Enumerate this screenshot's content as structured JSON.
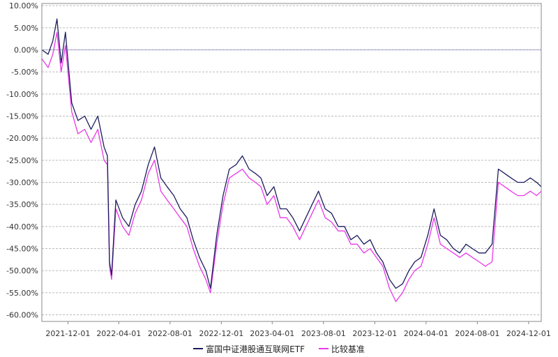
{
  "colors": {
    "fund": "#1b1b5e",
    "benchmark": "#e838e8",
    "grid": "#bbbbbb",
    "zero": "#3a3a8a"
  },
  "chart_data": {
    "type": "line",
    "xlabel": "",
    "ylabel": "",
    "x_ticks": [
      "2021-12-01",
      "2022-04-01",
      "2022-08-01",
      "2022-12-01",
      "2023-04-01",
      "2023-08-01",
      "2023-12-01",
      "2024-04-01",
      "2024-08-01",
      "2024-12-01"
    ],
    "y_ticks": [
      "10.00%",
      "5.00%",
      "0.00%",
      "-5.00%",
      "-10.00%",
      "-15.00%",
      "-20.00%",
      "-25.00%",
      "-30.00%",
      "-35.00%",
      "-40.00%",
      "-45.00%",
      "-50.00%",
      "-55.00%",
      "-60.00%"
    ],
    "ylim": [
      -61.5,
      10.5
    ],
    "grid": true,
    "legend_position": "bottom",
    "x_dates": [
      "2021-09-30",
      "2021-10-15",
      "2021-10-26",
      "2021-11-05",
      "2021-11-15",
      "2021-11-25",
      "2021-12-10",
      "2021-12-25",
      "2022-01-10",
      "2022-01-25",
      "2022-02-10",
      "2022-02-25",
      "2022-03-05",
      "2022-03-10",
      "2022-03-15",
      "2022-03-25",
      "2022-04-10",
      "2022-04-25",
      "2022-05-10",
      "2022-05-25",
      "2022-06-10",
      "2022-06-25",
      "2022-07-10",
      "2022-07-25",
      "2022-08-10",
      "2022-08-25",
      "2022-09-10",
      "2022-09-25",
      "2022-10-10",
      "2022-10-25",
      "2022-11-05",
      "2022-11-20",
      "2022-12-05",
      "2022-12-20",
      "2023-01-05",
      "2023-01-20",
      "2023-02-05",
      "2023-02-20",
      "2023-03-05",
      "2023-03-20",
      "2023-04-05",
      "2023-04-20",
      "2023-05-05",
      "2023-05-20",
      "2023-06-05",
      "2023-06-20",
      "2023-07-05",
      "2023-07-20",
      "2023-08-05",
      "2023-08-20",
      "2023-09-05",
      "2023-09-20",
      "2023-10-05",
      "2023-10-20",
      "2023-11-05",
      "2023-11-20",
      "2023-12-05",
      "2023-12-20",
      "2024-01-05",
      "2024-01-20",
      "2024-02-05",
      "2024-02-20",
      "2024-03-05",
      "2024-03-20",
      "2024-04-05",
      "2024-04-20",
      "2024-05-05",
      "2024-05-20",
      "2024-06-05",
      "2024-06-20",
      "2024-07-05",
      "2024-07-20",
      "2024-08-05",
      "2024-08-20",
      "2024-09-05",
      "2024-09-20",
      "2024-10-05",
      "2024-10-20",
      "2024-11-05",
      "2024-11-20",
      "2024-12-05",
      "2024-12-20",
      "2024-12-31"
    ],
    "series": [
      {
        "name": "富国中证港股通互联网ETF",
        "values": [
          0,
          -1,
          2,
          7,
          -3,
          4,
          -12,
          -16,
          -15,
          -18,
          -15,
          -22,
          -24,
          -48,
          -51,
          -34,
          -38,
          -40,
          -35,
          -32,
          -26,
          -22,
          -29,
          -31,
          -33,
          -36,
          -38,
          -43,
          -47,
          -50,
          -54,
          -42,
          -33,
          -27,
          -26,
          -24,
          -27,
          -28,
          -29,
          -33,
          -31,
          -36,
          -36,
          -38,
          -41,
          -38,
          -35,
          -32,
          -36,
          -37,
          -40,
          -40,
          -43,
          -42,
          -44,
          -43,
          -46,
          -48,
          -52,
          -54,
          -53,
          -50,
          -48,
          -47,
          -42,
          -36,
          -42,
          -43,
          -45,
          -46,
          -44,
          -45,
          -46,
          -46,
          -44,
          -27,
          -28,
          -29,
          -30,
          -30,
          -29,
          -30,
          -31
        ]
      },
      {
        "name": "比较基准",
        "values": [
          -2,
          -4,
          -1,
          4,
          -5,
          1,
          -14,
          -19,
          -18,
          -21,
          -18,
          -25,
          -26,
          -49,
          -52,
          -36,
          -40,
          -42,
          -37,
          -34,
          -28,
          -25,
          -32,
          -34,
          -36,
          -38,
          -40,
          -45,
          -49,
          -52,
          -55,
          -44,
          -35,
          -29,
          -28,
          -27,
          -29,
          -30,
          -31,
          -35,
          -33,
          -38,
          -38,
          -40,
          -43,
          -40,
          -37,
          -34,
          -38,
          -39,
          -41,
          -41,
          -44,
          -44,
          -46,
          -45,
          -47,
          -49,
          -54,
          -57,
          -55,
          -52,
          -50,
          -49,
          -44,
          -38,
          -44,
          -45,
          -46,
          -47,
          -46,
          -47,
          -48,
          -49,
          -48,
          -30,
          -31,
          -32,
          -33,
          -33,
          -32,
          -33,
          -32
        ]
      }
    ]
  }
}
